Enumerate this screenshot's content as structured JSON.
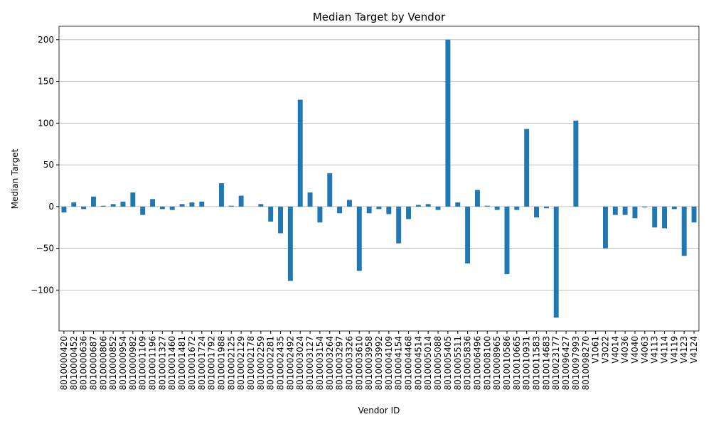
{
  "chart_data": {
    "type": "bar",
    "title": "Median Target by Vendor",
    "x_label": "Vendor ID",
    "y_label": "Median Target",
    "categories": [
      "8010000420",
      "8010000452",
      "8010000636",
      "8010000687",
      "8010000806",
      "8010000852",
      "8010000954",
      "8010000982",
      "8010001109",
      "8010001196",
      "8010001327",
      "8010001460",
      "8010001481",
      "8010001672",
      "8010001724",
      "8010001792",
      "8010001988",
      "8010002125",
      "8010002129",
      "8010002178",
      "8010002259",
      "8010002281",
      "8010002435",
      "8010002492",
      "8010003024",
      "8010003127",
      "8010003154",
      "8010003264",
      "8010003297",
      "8010003326",
      "8010003610",
      "8010003958",
      "8010003992",
      "8010004109",
      "8010004154",
      "8010004468",
      "8010004514",
      "8010005014",
      "8010005088",
      "8010005405",
      "8010005511",
      "8010005836",
      "8010006496",
      "8010008100",
      "8010008965",
      "8010010586",
      "8010010665",
      "8010010931",
      "8010011583",
      "8010014683",
      "8010023177",
      "8010096427",
      "8010097993",
      "8010098270",
      "V1061",
      "V3022",
      "V4014",
      "V4036",
      "V4040",
      "V4063",
      "V4113",
      "V4114",
      "V4119",
      "V4123",
      "V4124"
    ],
    "values": [
      -7,
      5,
      -3,
      12,
      1,
      3,
      6,
      17,
      -10,
      9,
      -3,
      -4,
      3,
      5,
      6,
      0,
      28,
      1,
      13,
      0,
      3,
      -18,
      -32,
      -89,
      128,
      17,
      -19,
      40,
      -8,
      8,
      -77,
      -8,
      -3,
      -9,
      -44,
      -15,
      2,
      3,
      -4,
      200,
      5,
      -68,
      20,
      1,
      -4,
      -81,
      -4,
      93,
      -13,
      -2,
      -133,
      0,
      103,
      0,
      0,
      -50,
      -10,
      -10,
      -14,
      -1,
      -25,
      -26,
      -3,
      -59,
      -19
    ],
    "color": "#1f77b4",
    "ylim": [
      -149,
      216
    ],
    "yticks": [
      {
        "value": -100,
        "label": "−100"
      },
      {
        "value": -50,
        "label": "−50"
      },
      0,
      50,
      100,
      150,
      200
    ],
    "grid": true
  }
}
